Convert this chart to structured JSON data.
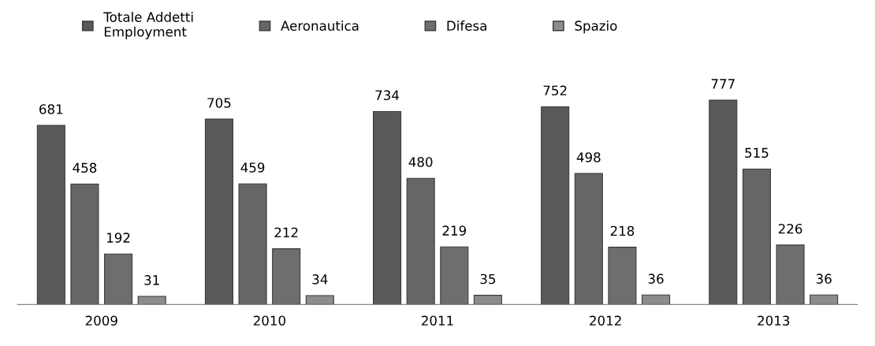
{
  "chart_data": {
    "type": "bar",
    "categories": [
      "2009",
      "2010",
      "2011",
      "2012",
      "2013"
    ],
    "series": [
      {
        "name": "Totale Addetti\nEmployment",
        "color": "#595959",
        "values": [
          681,
          705,
          734,
          752,
          777
        ]
      },
      {
        "name": "Aeronautica",
        "color": "#666666",
        "values": [
          458,
          459,
          480,
          498,
          515
        ]
      },
      {
        "name": "Difesa",
        "color": "#6e6e6e",
        "values": [
          192,
          212,
          219,
          218,
          226
        ]
      },
      {
        "name": "Spazio",
        "color": "#8c8c8c",
        "values": [
          31,
          34,
          35,
          36,
          36
        ]
      }
    ],
    "data_labels": true,
    "legend": "top",
    "grid": false
  }
}
